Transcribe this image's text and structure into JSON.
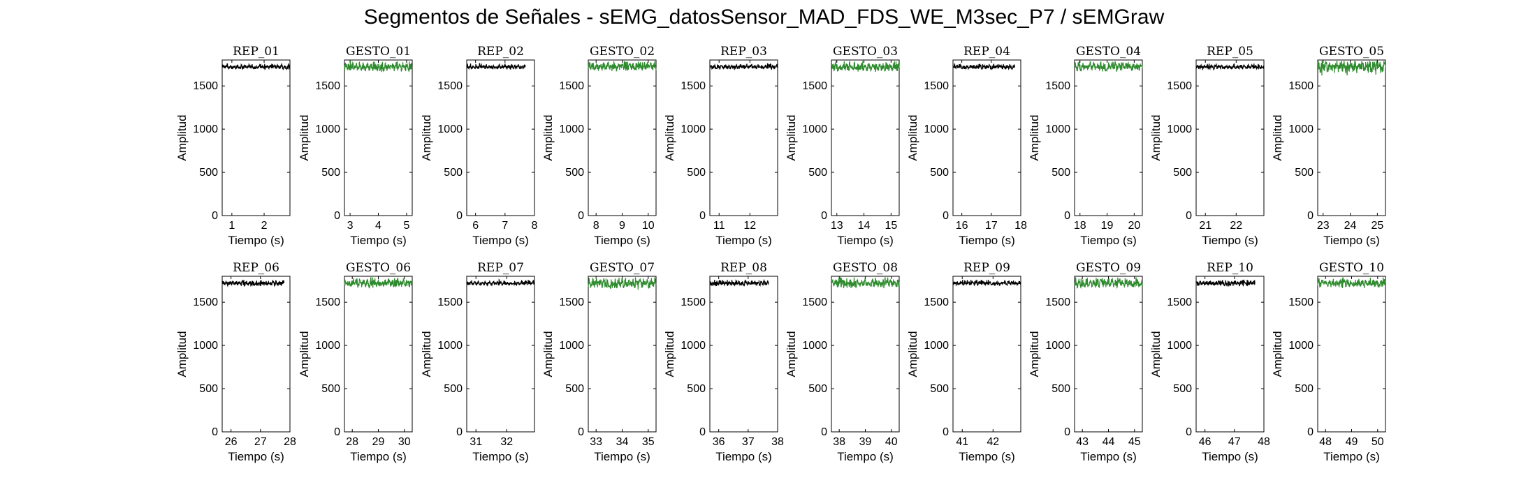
{
  "figure": {
    "title": "Segmentos de Señales - sEMG_datosSensor_MAD_FDS_WE_M3sec_P7 / sEMGraw"
  },
  "colors": {
    "rep": "#000000",
    "gesto": "#2e8b2e",
    "axes": "#000000"
  },
  "chart_data": [
    {
      "type": "line",
      "title": "REP_01",
      "xlabel": "Tiempo (s)",
      "ylabel": "Amplitud",
      "xlim": [
        0.7,
        2.8
      ],
      "ylim": [
        0,
        1800
      ],
      "xticks": [
        1,
        2
      ],
      "yticks": [
        0,
        500,
        1000,
        1500
      ],
      "series": [
        {
          "x_start": 0.7,
          "x_end": 2.8,
          "mean": 1720,
          "range": [
            1690,
            1760
          ],
          "color": "rep"
        }
      ]
    },
    {
      "type": "line",
      "title": "GESTO_01",
      "xlabel": "Tiempo (s)",
      "ylabel": "Amplitud",
      "xlim": [
        2.8,
        5.2
      ],
      "ylim": [
        0,
        1800
      ],
      "xticks": [
        3,
        4,
        5
      ],
      "yticks": [
        0,
        500,
        1000,
        1500
      ],
      "series": [
        {
          "x_start": 2.8,
          "x_end": 5.2,
          "mean": 1720,
          "range": [
            1660,
            1790
          ],
          "color": "gesto"
        }
      ]
    },
    {
      "type": "line",
      "title": "REP_02",
      "xlabel": "Tiempo (s)",
      "ylabel": "Amplitud",
      "xlim": [
        5.7,
        8
      ],
      "ylim": [
        0,
        1800
      ],
      "xticks": [
        6,
        7,
        8
      ],
      "yticks": [
        0,
        500,
        1000,
        1500
      ],
      "series": [
        {
          "x_start": 5.7,
          "x_end": 7.7,
          "mean": 1720,
          "range": [
            1690,
            1760
          ],
          "color": "rep"
        }
      ]
    },
    {
      "type": "line",
      "title": "GESTO_02",
      "xlabel": "Tiempo (s)",
      "ylabel": "Amplitud",
      "xlim": [
        7.7,
        10.3
      ],
      "ylim": [
        0,
        1800
      ],
      "xticks": [
        8,
        9,
        10
      ],
      "yticks": [
        0,
        500,
        1000,
        1500
      ],
      "series": [
        {
          "x_start": 7.7,
          "x_end": 10.3,
          "mean": 1725,
          "range": [
            1660,
            1790
          ],
          "color": "gesto"
        }
      ]
    },
    {
      "type": "line",
      "title": "REP_03",
      "xlabel": "Tiempo (s)",
      "ylabel": "Amplitud",
      "xlim": [
        10.7,
        12.9
      ],
      "ylim": [
        0,
        1800
      ],
      "xticks": [
        11,
        12
      ],
      "yticks": [
        0,
        500,
        1000,
        1500
      ],
      "series": [
        {
          "x_start": 10.7,
          "x_end": 12.9,
          "mean": 1720,
          "range": [
            1690,
            1760
          ],
          "color": "rep"
        }
      ]
    },
    {
      "type": "line",
      "title": "GESTO_03",
      "xlabel": "Tiempo (s)",
      "ylabel": "Amplitud",
      "xlim": [
        12.8,
        15.3
      ],
      "ylim": [
        0,
        1800
      ],
      "xticks": [
        13,
        14,
        15
      ],
      "yticks": [
        0,
        500,
        1000,
        1500
      ],
      "series": [
        {
          "x_start": 12.8,
          "x_end": 15.3,
          "mean": 1720,
          "range": [
            1660,
            1790
          ],
          "color": "gesto"
        }
      ]
    },
    {
      "type": "line",
      "title": "REP_04",
      "xlabel": "Tiempo (s)",
      "ylabel": "Amplitud",
      "xlim": [
        15.7,
        18
      ],
      "ylim": [
        0,
        1800
      ],
      "xticks": [
        16,
        17,
        18
      ],
      "yticks": [
        0,
        500,
        1000,
        1500
      ],
      "series": [
        {
          "x_start": 15.7,
          "x_end": 17.8,
          "mean": 1720,
          "range": [
            1690,
            1760
          ],
          "color": "rep"
        }
      ]
    },
    {
      "type": "line",
      "title": "GESTO_04",
      "xlabel": "Tiempo (s)",
      "ylabel": "Amplitud",
      "xlim": [
        17.8,
        20.3
      ],
      "ylim": [
        0,
        1800
      ],
      "xticks": [
        18,
        19,
        20
      ],
      "yticks": [
        0,
        500,
        1000,
        1500
      ],
      "series": [
        {
          "x_start": 17.8,
          "x_end": 20.3,
          "mean": 1720,
          "range": [
            1660,
            1790
          ],
          "color": "gesto"
        }
      ]
    },
    {
      "type": "line",
      "title": "REP_05",
      "xlabel": "Tiempo (s)",
      "ylabel": "Amplitud",
      "xlim": [
        20.7,
        22.9
      ],
      "ylim": [
        0,
        1800
      ],
      "xticks": [
        21,
        22
      ],
      "yticks": [
        0,
        500,
        1000,
        1500
      ],
      "series": [
        {
          "x_start": 20.7,
          "x_end": 22.9,
          "mean": 1720,
          "range": [
            1690,
            1760
          ],
          "color": "rep"
        }
      ]
    },
    {
      "type": "line",
      "title": "GESTO_05",
      "xlabel": "Tiempo (s)",
      "ylabel": "Amplitud",
      "xlim": [
        22.8,
        25.3
      ],
      "ylim": [
        0,
        1800
      ],
      "xticks": [
        23,
        24,
        25
      ],
      "yticks": [
        0,
        500,
        1000,
        1500
      ],
      "series": [
        {
          "x_start": 22.8,
          "x_end": 25.3,
          "mean": 1720,
          "range": [
            1600,
            1790
          ],
          "color": "gesto"
        }
      ]
    },
    {
      "type": "line",
      "title": "REP_06",
      "xlabel": "Tiempo (s)",
      "ylabel": "Amplitud",
      "xlim": [
        25.7,
        28
      ],
      "ylim": [
        0,
        1800
      ],
      "xticks": [
        26,
        27,
        28
      ],
      "yticks": [
        0,
        500,
        1000,
        1500
      ],
      "series": [
        {
          "x_start": 25.7,
          "x_end": 27.8,
          "mean": 1720,
          "range": [
            1680,
            1760
          ],
          "color": "rep"
        }
      ]
    },
    {
      "type": "line",
      "title": "GESTO_06",
      "xlabel": "Tiempo (s)",
      "ylabel": "Amplitud",
      "xlim": [
        27.7,
        30.3
      ],
      "ylim": [
        0,
        1800
      ],
      "xticks": [
        28,
        29,
        30
      ],
      "yticks": [
        0,
        500,
        1000,
        1500
      ],
      "series": [
        {
          "x_start": 27.7,
          "x_end": 30.3,
          "mean": 1720,
          "range": [
            1660,
            1790
          ],
          "color": "gesto"
        }
      ]
    },
    {
      "type": "line",
      "title": "REP_07",
      "xlabel": "Tiempo (s)",
      "ylabel": "Amplitud",
      "xlim": [
        30.7,
        32.9
      ],
      "ylim": [
        0,
        1800
      ],
      "xticks": [
        31,
        32
      ],
      "yticks": [
        0,
        500,
        1000,
        1500
      ],
      "series": [
        {
          "x_start": 30.7,
          "x_end": 32.9,
          "mean": 1720,
          "range": [
            1690,
            1760
          ],
          "color": "rep"
        }
      ]
    },
    {
      "type": "line",
      "title": "GESTO_07",
      "xlabel": "Tiempo (s)",
      "ylabel": "Amplitud",
      "xlim": [
        32.7,
        35.3
      ],
      "ylim": [
        0,
        1800
      ],
      "xticks": [
        33,
        34,
        35
      ],
      "yticks": [
        0,
        500,
        1000,
        1500
      ],
      "series": [
        {
          "x_start": 32.7,
          "x_end": 35.3,
          "mean": 1720,
          "range": [
            1640,
            1790
          ],
          "color": "gesto"
        }
      ]
    },
    {
      "type": "line",
      "title": "REP_08",
      "xlabel": "Tiempo (s)",
      "ylabel": "Amplitud",
      "xlim": [
        35.7,
        38
      ],
      "ylim": [
        0,
        1800
      ],
      "xticks": [
        36,
        37,
        38
      ],
      "yticks": [
        0,
        500,
        1000,
        1500
      ],
      "series": [
        {
          "x_start": 35.7,
          "x_end": 37.7,
          "mean": 1720,
          "range": [
            1680,
            1760
          ],
          "color": "rep"
        }
      ]
    },
    {
      "type": "line",
      "title": "GESTO_08",
      "xlabel": "Tiempo (s)",
      "ylabel": "Amplitud",
      "xlim": [
        37.7,
        40.3
      ],
      "ylim": [
        0,
        1800
      ],
      "xticks": [
        38,
        39,
        40
      ],
      "yticks": [
        0,
        500,
        1000,
        1500
      ],
      "series": [
        {
          "x_start": 37.7,
          "x_end": 40.3,
          "mean": 1720,
          "range": [
            1660,
            1790
          ],
          "color": "gesto"
        }
      ]
    },
    {
      "type": "line",
      "title": "REP_09",
      "xlabel": "Tiempo (s)",
      "ylabel": "Amplitud",
      "xlim": [
        40.7,
        42.9
      ],
      "ylim": [
        0,
        1800
      ],
      "xticks": [
        41,
        42
      ],
      "yticks": [
        0,
        500,
        1000,
        1500
      ],
      "series": [
        {
          "x_start": 40.7,
          "x_end": 42.9,
          "mean": 1720,
          "range": [
            1690,
            1760
          ],
          "color": "rep"
        }
      ]
    },
    {
      "type": "line",
      "title": "GESTO_09",
      "xlabel": "Tiempo (s)",
      "ylabel": "Amplitud",
      "xlim": [
        42.7,
        45.3
      ],
      "ylim": [
        0,
        1800
      ],
      "xticks": [
        43,
        44,
        45
      ],
      "yticks": [
        0,
        500,
        1000,
        1500
      ],
      "series": [
        {
          "x_start": 42.7,
          "x_end": 45.3,
          "mean": 1720,
          "range": [
            1660,
            1790
          ],
          "color": "gesto"
        }
      ]
    },
    {
      "type": "line",
      "title": "REP_10",
      "xlabel": "Tiempo (s)",
      "ylabel": "Amplitud",
      "xlim": [
        45.7,
        48
      ],
      "ylim": [
        0,
        1800
      ],
      "xticks": [
        46,
        47,
        48
      ],
      "yticks": [
        0,
        500,
        1000,
        1500
      ],
      "series": [
        {
          "x_start": 45.7,
          "x_end": 47.7,
          "mean": 1720,
          "range": [
            1680,
            1760
          ],
          "color": "rep"
        }
      ]
    },
    {
      "type": "line",
      "title": "GESTO_10",
      "xlabel": "Tiempo (s)",
      "ylabel": "Amplitud",
      "xlim": [
        47.7,
        50.3
      ],
      "ylim": [
        0,
        1800
      ],
      "xticks": [
        48,
        49,
        50
      ],
      "yticks": [
        0,
        500,
        1000,
        1500
      ],
      "series": [
        {
          "x_start": 47.7,
          "x_end": 50.3,
          "mean": 1720,
          "range": [
            1660,
            1790
          ],
          "color": "gesto"
        }
      ]
    }
  ]
}
